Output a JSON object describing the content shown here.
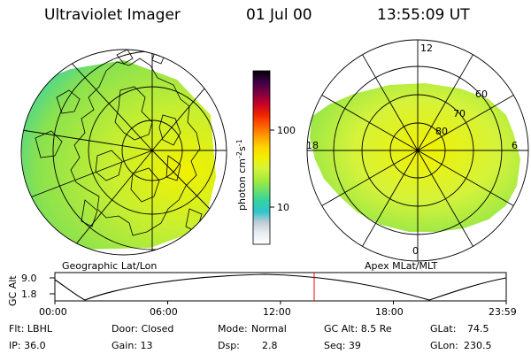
{
  "header": {
    "instrument": "Ultraviolet Imager",
    "date": "01 Jul 00",
    "time": "13:55:09 UT"
  },
  "geo_panel": {
    "caption": "Geographic Lat/Lon"
  },
  "mag_panel": {
    "caption": "Apex  MLat/MLT",
    "mlt_labels": {
      "noon": "12",
      "midnight": "0",
      "dusk": "18",
      "dawn": "6"
    },
    "mlat_labels": [
      "60",
      "70",
      "80"
    ]
  },
  "colorbar": {
    "unit_text": "photon cm",
    "unit_sup1": "-2",
    "unit_s": "s",
    "unit_sup2": "-1",
    "ticks": [
      "100",
      "10"
    ],
    "colors": [
      "#ffffff",
      "#e9eef3",
      "#c2ccd6",
      "#2fc4ce",
      "#33d3a0",
      "#6ee06a",
      "#a8ec3a",
      "#d6f33a",
      "#f2f000",
      "#ffd200",
      "#ff9a00",
      "#ff5a00",
      "#ee2100",
      "#c4002a",
      "#7a0040",
      "#3c0046",
      "#000000"
    ]
  },
  "altitude_plot": {
    "ylabel": "GC Alt",
    "yticks": [
      "9.0",
      "1.8"
    ],
    "xticks": [
      "00:00",
      "06:00",
      "12:00",
      "18:00",
      "23:59"
    ],
    "marker_color": "#ff0000"
  },
  "info": {
    "filter": "Flt: LBHL",
    "door": "Door: Closed",
    "mode_label": "Mode:",
    "mode_value": "Normal",
    "gc_alt": "GC Alt: 8.5 Re",
    "glat_label": "GLat:",
    "glat_value": "74.5",
    "ip": "IP: 36.0",
    "gain": "Gain: 13",
    "dsp_label": "Dsp:",
    "dsp_value": "2.8",
    "seq": "Seq: 39",
    "glon_label": "GLon:",
    "glon_value": "230.5"
  }
}
